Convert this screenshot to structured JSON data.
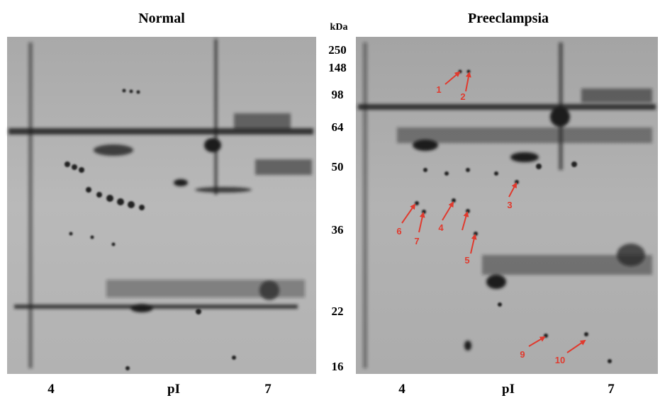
{
  "panels": [
    {
      "title": "Normal",
      "x_labels": [
        "4",
        "pI",
        "7"
      ]
    },
    {
      "title": "Preeclampsia",
      "x_labels": [
        "4",
        "pI",
        "7"
      ],
      "annotations": [
        "1",
        "2",
        "3",
        "4",
        "5",
        "6",
        "7",
        "9",
        "10"
      ]
    }
  ],
  "mw_axis": {
    "unit": "kDa",
    "labels": [
      "250",
      "148",
      "98",
      "64",
      "50",
      "36",
      "22",
      "16"
    ]
  }
}
